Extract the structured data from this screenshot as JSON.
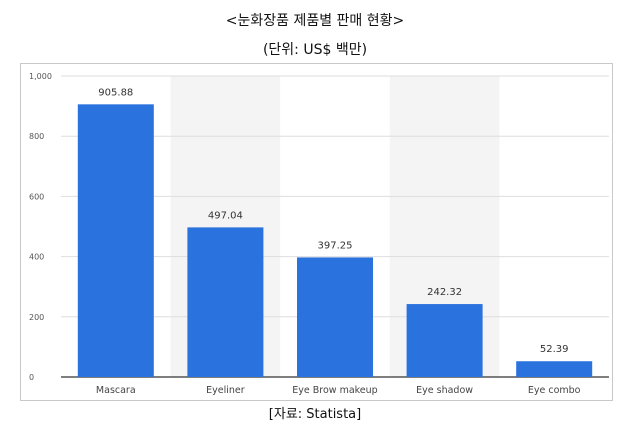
{
  "title": "<눈화장품 제품별 판매 현황>",
  "subtitle": "(단위: US$ 백만)",
  "source": "[자료: Statista]",
  "chart_data": {
    "type": "bar",
    "categories": [
      "Mascara",
      "Eyeliner",
      "Eye Brow makeup",
      "Eye shadow",
      "Eye combo"
    ],
    "values": [
      905.88,
      497.04,
      397.25,
      242.32,
      52.39
    ],
    "data_labels": [
      "905.88",
      "497.04",
      "397.25",
      "242.32",
      "52.39"
    ],
    "yticks": [
      0,
      200,
      400,
      600,
      800,
      1000
    ],
    "ytick_labels": [
      "0",
      "200",
      "400",
      "600",
      "800",
      "1,000"
    ],
    "ylim": [
      0,
      1000
    ],
    "grid": true,
    "legend": "none",
    "bar_color": "#2a72de",
    "alt_band_color": "#f4f4f4"
  }
}
